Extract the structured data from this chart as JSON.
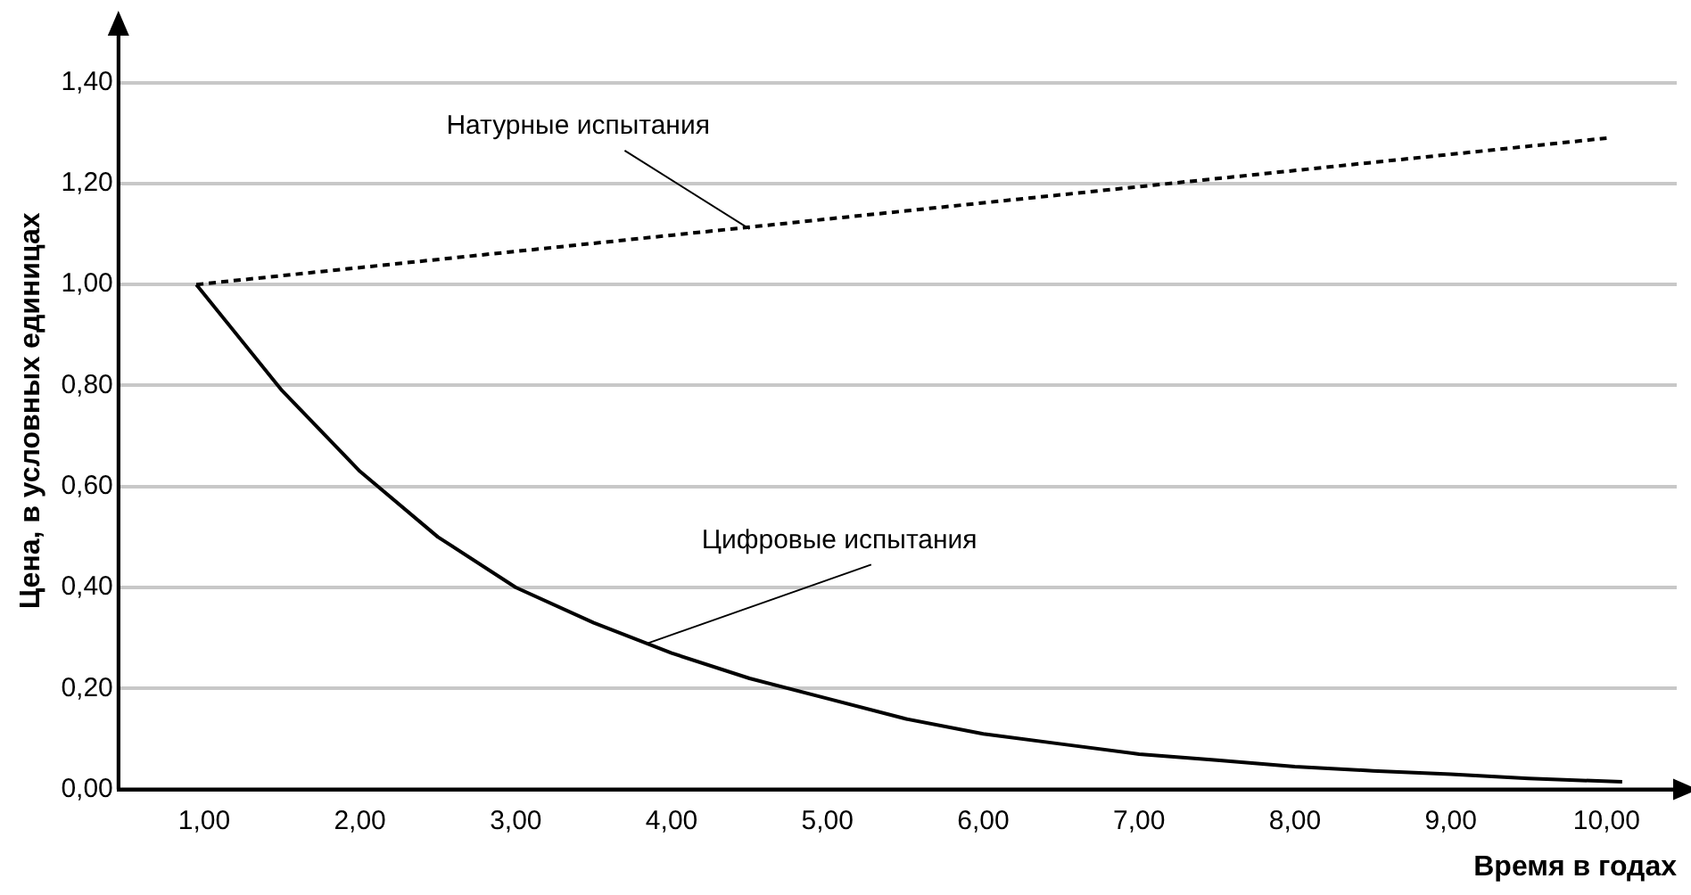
{
  "chart_data": {
    "type": "line",
    "xlabel": "Время в годах",
    "ylabel": "Цена, в условных единицах",
    "xlim": [
      0.45,
      10.45
    ],
    "ylim": [
      0,
      1.5
    ],
    "xticks": [
      {
        "value": 1,
        "label": "1,00"
      },
      {
        "value": 2,
        "label": "2,00"
      },
      {
        "value": 3,
        "label": "3,00"
      },
      {
        "value": 4,
        "label": "4,00"
      },
      {
        "value": 5,
        "label": "5,00"
      },
      {
        "value": 6,
        "label": "6,00"
      },
      {
        "value": 7,
        "label": "7,00"
      },
      {
        "value": 8,
        "label": "8,00"
      },
      {
        "value": 9,
        "label": "9,00"
      },
      {
        "value": 10,
        "label": "10,00"
      }
    ],
    "yticks": [
      {
        "value": 0,
        "label": "0,00"
      },
      {
        "value": 0.2,
        "label": "0,20"
      },
      {
        "value": 0.4,
        "label": "0,40"
      },
      {
        "value": 0.6,
        "label": "0,60"
      },
      {
        "value": 0.8,
        "label": "0,80"
      },
      {
        "value": 1,
        "label": "1,00"
      },
      {
        "value": 1.2,
        "label": "1,20"
      },
      {
        "value": 1.4,
        "label": "1,40"
      }
    ],
    "grid": "y",
    "marker": "none",
    "legend": false,
    "series": [
      {
        "color": "#000000",
        "line_style": "dashed",
        "x": [
          0.95,
          10.0
        ],
        "values": [
          1.0,
          1.29
        ]
      },
      {
        "color": "#000000",
        "line_style": "solid",
        "x": [
          0.95,
          1.5,
          2,
          2.5,
          3,
          3.5,
          4,
          4.5,
          5,
          5.5,
          6,
          6.5,
          7,
          7.5,
          8,
          8.5,
          9,
          9.5,
          10.1
        ],
        "values": [
          1.0,
          0.79,
          0.63,
          0.5,
          0.4,
          0.33,
          0.27,
          0.22,
          0.18,
          0.14,
          0.11,
          0.09,
          0.07,
          0.058,
          0.045,
          0.037,
          0.03,
          0.022,
          0.015
        ]
      }
    ],
    "annotations": [
      {
        "text": "Натурные испытания",
        "x": 4.5,
        "y": 1.11
      },
      {
        "text": "Цифровые испытания",
        "x": 3.85,
        "y": 0.29
      }
    ]
  }
}
